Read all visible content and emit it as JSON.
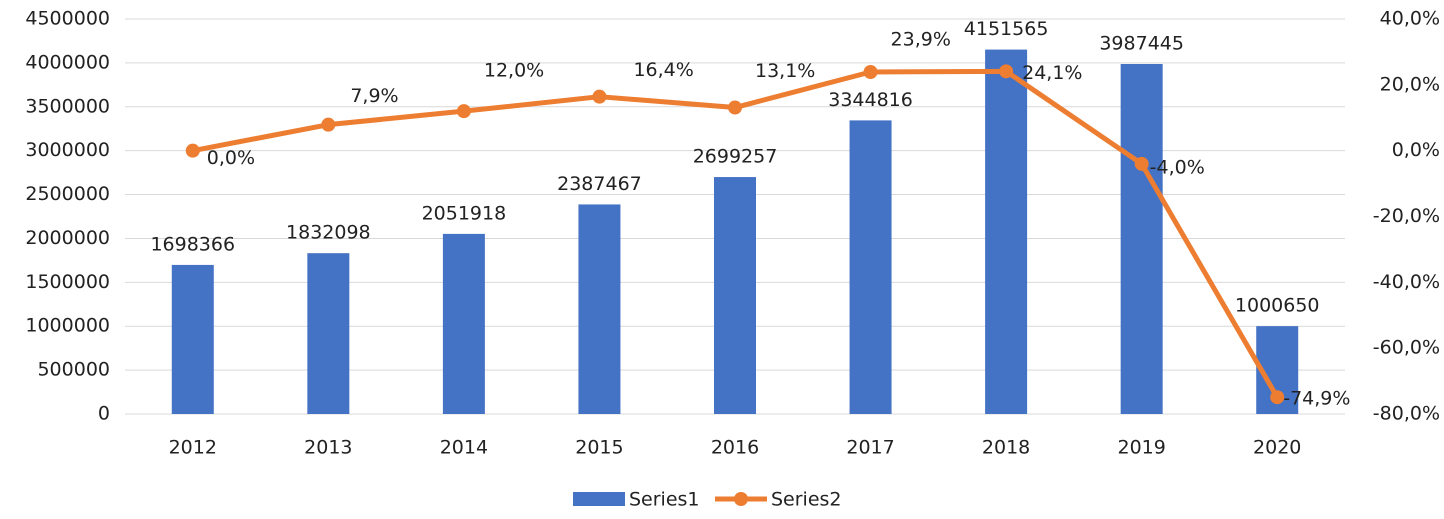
{
  "chart_data": {
    "type": "combo",
    "categories": [
      "2012",
      "2013",
      "2014",
      "2015",
      "2016",
      "2017",
      "2018",
      "2019",
      "2020"
    ],
    "series": [
      {
        "name": "Series1",
        "type": "bar",
        "color": "#4472c4",
        "values": [
          1698366,
          1832098,
          2051918,
          2387467,
          2699257,
          3344816,
          4151565,
          3987445,
          1000650
        ]
      },
      {
        "name": "Series2",
        "type": "line",
        "axis": "y2",
        "color": "#ed7d31",
        "values": [
          0.0,
          7.9,
          12.0,
          16.4,
          13.1,
          23.9,
          24.1,
          -4.0,
          -74.9
        ],
        "value_labels": [
          "0,0%",
          "7,9%",
          "12,0%",
          "16,4%",
          "13,1%",
          "23,9%",
          "24,1%",
          "-4,0%",
          "-74,9%"
        ]
      }
    ],
    "ylim": [
      0,
      4500000
    ],
    "yticks": [
      0,
      500000,
      1000000,
      1500000,
      2000000,
      2500000,
      3000000,
      3500000,
      4000000,
      4500000
    ],
    "y2lim": [
      -80,
      40
    ],
    "y2ticks": [
      {
        "value": -80,
        "label": "-80,0%"
      },
      {
        "value": -60,
        "label": "-60,0%"
      },
      {
        "value": -40,
        "label": "-40,0%"
      },
      {
        "value": -20,
        "label": "-20,0%"
      },
      {
        "value": 0,
        "label": "0,0%"
      },
      {
        "value": 20,
        "label": "20,0%"
      },
      {
        "value": 40,
        "label": "40,0%"
      }
    ],
    "grid": true,
    "legend": "bottom"
  }
}
